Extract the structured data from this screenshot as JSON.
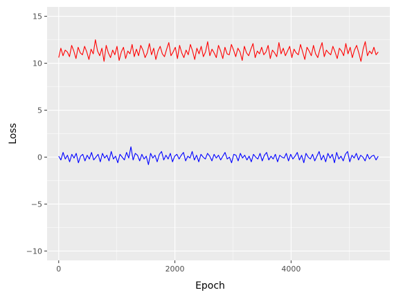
{
  "chart_data": {
    "type": "line",
    "title": "",
    "xlabel": "Epoch",
    "ylabel": "Loss",
    "xlim": [
      -200,
      5700
    ],
    "ylim": [
      -11,
      16
    ],
    "x_ticks": [
      0,
      2000,
      4000
    ],
    "y_ticks": [
      -10,
      -5,
      0,
      5,
      10,
      15
    ],
    "x_tick_labels": [
      "0",
      "2000",
      "4000"
    ],
    "y_tick_labels": [
      "−10",
      "−5",
      "0",
      "5",
      "10",
      "15"
    ],
    "grid": true,
    "legend": "none",
    "x_range": [
      0,
      5500
    ],
    "series": [
      {
        "color": "#ff0000",
        "mean": 11.2,
        "spread": 0.55,
        "values": [
          10.6,
          11.6,
          10.8,
          11.4,
          11.2,
          10.7,
          11.9,
          11.3,
          10.5,
          11.7,
          11.1,
          10.9,
          11.8,
          11.2,
          10.4,
          11.5,
          11.0,
          12.5,
          11.3,
          10.8,
          11.6,
          10.2,
          11.9,
          11.1,
          10.6,
          11.4,
          10.9,
          11.8,
          10.3,
          11.2,
          11.7,
          10.5,
          11.3,
          11.0,
          12.0,
          10.7,
          11.5,
          10.8,
          11.9,
          11.4,
          10.6,
          11.1,
          12.1,
          10.9,
          11.6,
          10.4,
          11.3,
          11.8,
          11.0,
          10.7,
          11.5,
          12.2,
          10.8,
          11.2,
          11.7,
          10.5,
          11.9,
          11.1,
          10.6,
          11.4,
          10.9,
          12.0,
          11.3,
          10.4,
          11.6,
          11.0,
          11.8,
          10.7,
          11.2,
          12.3,
          10.8,
          11.5,
          11.1,
          10.6,
          11.9,
          11.3,
          10.5,
          11.7,
          11.0,
          10.9,
          12.0,
          11.4,
          10.7,
          11.6,
          11.2,
          10.3,
          11.8,
          11.1,
          10.8,
          11.5,
          12.1,
          10.6,
          11.3,
          11.0,
          11.7,
          10.9,
          11.2,
          11.9,
          10.5,
          11.4,
          11.1,
          10.7,
          12.2,
          11.0,
          11.6,
          10.8,
          11.3,
          11.8,
          10.6,
          11.5,
          11.1,
          10.9,
          12.0,
          11.2,
          10.4,
          11.7,
          11.3,
          10.8,
          11.9,
          11.0,
          10.6,
          11.5,
          12.2,
          10.7,
          11.4,
          11.1,
          10.9,
          11.8,
          11.2,
          10.5,
          11.6,
          11.3,
          10.8,
          12.1,
          11.0,
          11.7,
          10.6,
          11.4,
          11.9,
          11.1,
          10.2,
          11.5,
          12.3,
          10.8,
          11.3,
          11.0,
          11.7,
          10.9,
          11.2
        ]
      },
      {
        "color": "#0000ff",
        "mean": 0.0,
        "spread": 0.4,
        "values": [
          0.1,
          -0.3,
          0.5,
          -0.2,
          0.2,
          -0.5,
          0.3,
          -0.1,
          0.4,
          -0.6,
          0.1,
          0.3,
          -0.4,
          0.2,
          -0.2,
          0.5,
          -0.3,
          0.0,
          0.3,
          -0.5,
          0.4,
          -0.1,
          0.2,
          -0.4,
          0.6,
          -0.2,
          0.1,
          -0.6,
          0.3,
          0.0,
          -0.3,
          0.5,
          -0.1,
          1.1,
          -0.3,
          0.4,
          0.2,
          -0.4,
          0.3,
          -0.2,
          0.1,
          -0.8,
          0.4,
          -0.1,
          0.2,
          -0.5,
          0.3,
          0.6,
          -0.3,
          0.2,
          -0.2,
          0.4,
          -0.5,
          0.1,
          0.3,
          -0.2,
          0.2,
          0.5,
          -0.4,
          0.1,
          -0.1,
          0.6,
          -0.3,
          0.2,
          -0.5,
          0.3,
          0.0,
          -0.2,
          0.4,
          0.1,
          -0.4,
          0.3,
          -0.1,
          0.2,
          -0.3,
          0.1,
          0.5,
          -0.2,
          0.0,
          -0.6,
          0.3,
          0.2,
          -0.4,
          0.4,
          -0.1,
          0.2,
          -0.3,
          0.1,
          -0.5,
          0.3,
          0.0,
          -0.2,
          0.4,
          -0.4,
          0.2,
          0.5,
          -0.3,
          0.1,
          -0.2,
          0.3,
          -0.5,
          0.2,
          0.0,
          -0.1,
          0.4,
          -0.4,
          0.3,
          -0.2,
          0.1,
          0.5,
          -0.3,
          0.2,
          -0.6,
          0.4,
          0.0,
          -0.2,
          0.3,
          -0.4,
          0.1,
          0.6,
          -0.3,
          0.2,
          -0.5,
          0.4,
          -0.1,
          0.3,
          -0.6,
          0.5,
          -0.2,
          0.1,
          -0.4,
          0.3,
          0.6,
          -0.5,
          0.2,
          -0.1,
          0.4,
          -0.3,
          0.2,
          0.0,
          -0.4,
          0.3,
          -0.2,
          0.1,
          0.2,
          -0.3,
          0.1
        ]
      }
    ]
  }
}
